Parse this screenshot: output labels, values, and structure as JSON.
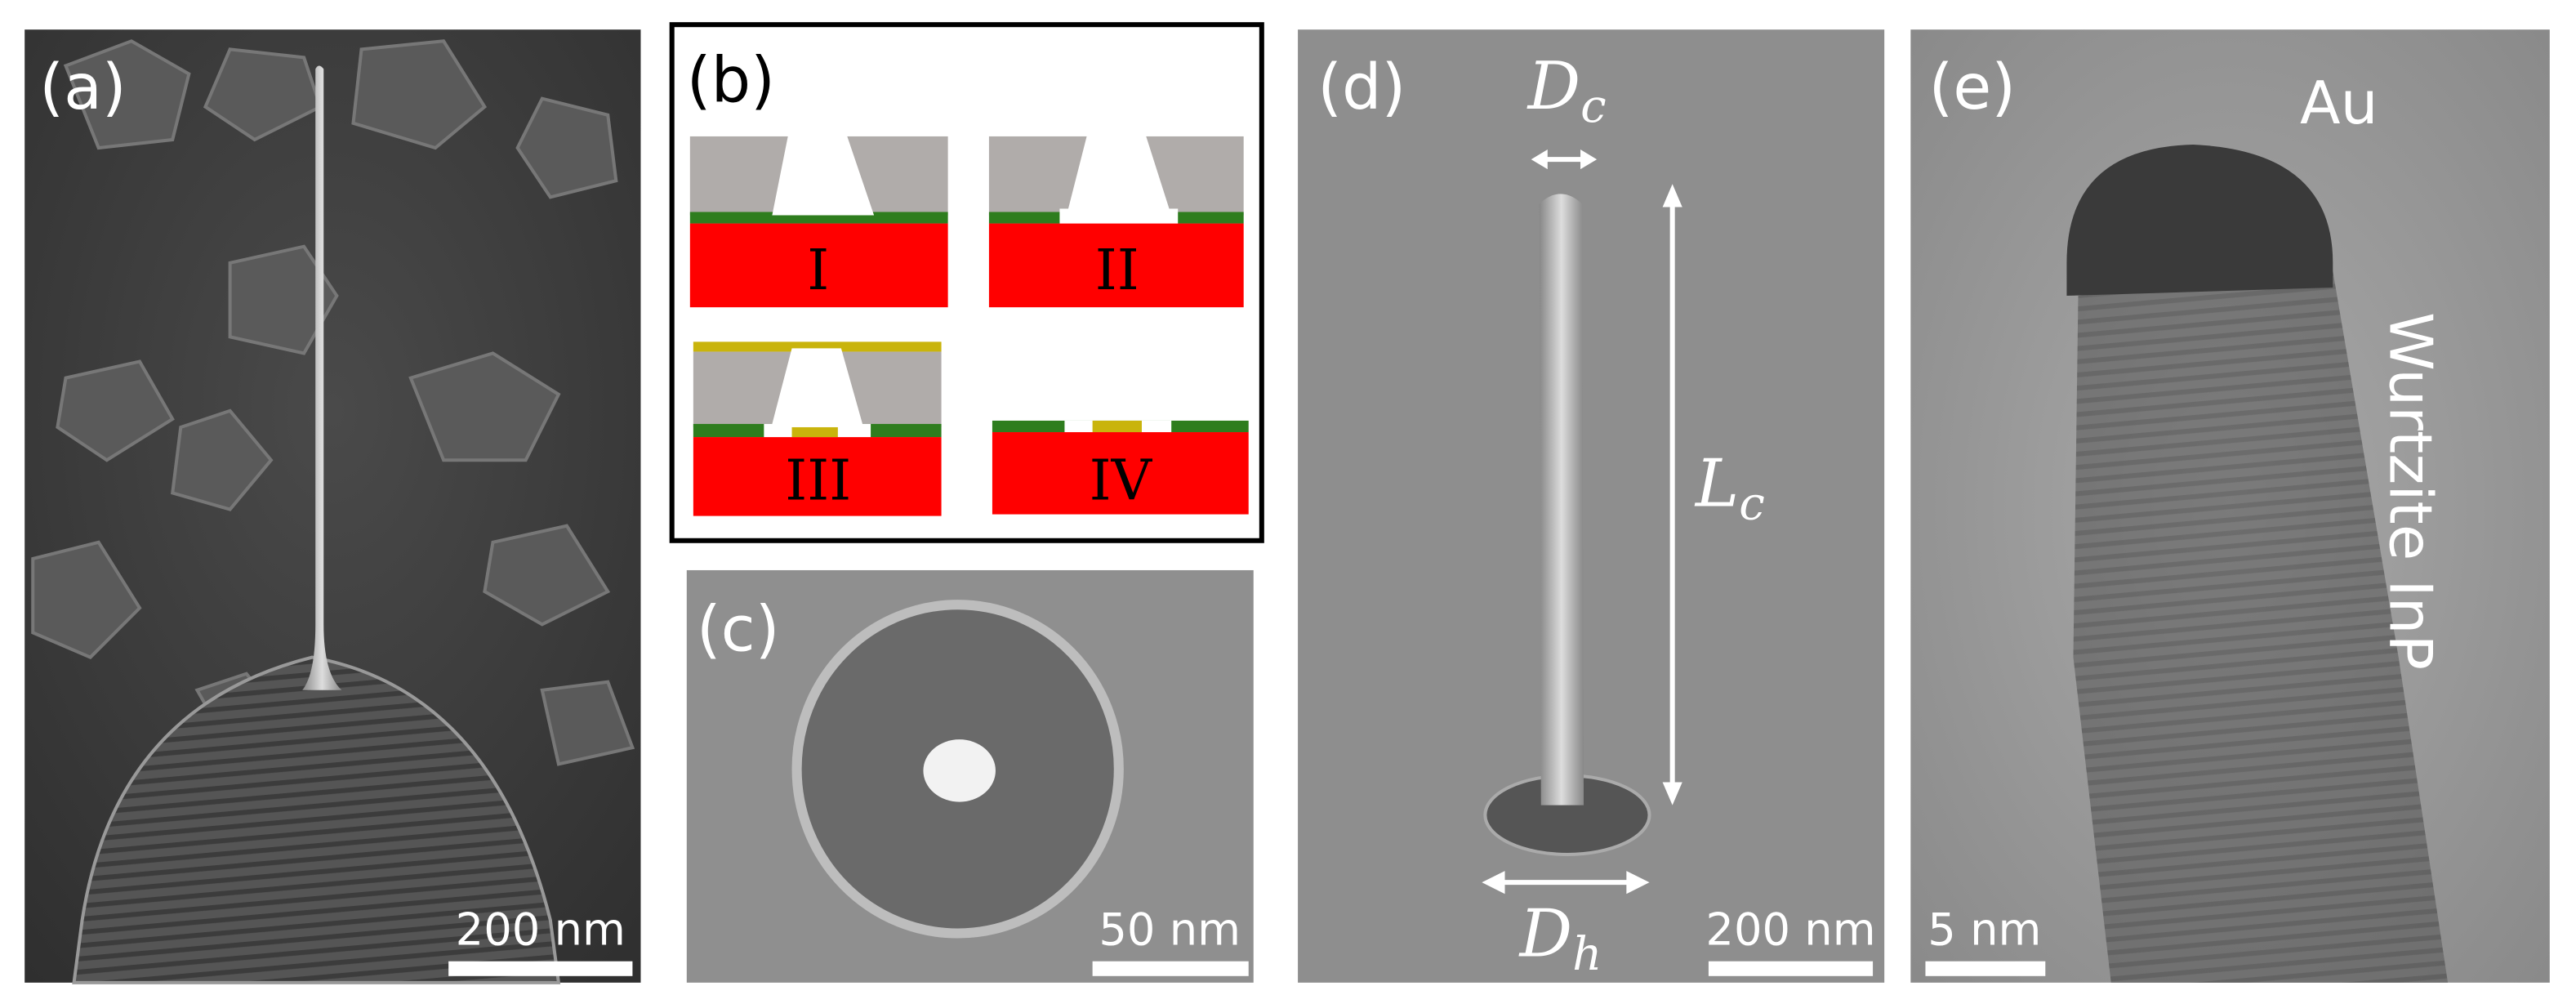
{
  "panels": [
    {
      "label": "(a)",
      "scale_bar": "200 nm"
    },
    {
      "label": "(b)",
      "steps": [
        "I",
        "II",
        "III",
        "IV"
      ]
    },
    {
      "label": "(c)",
      "scale_bar": "50 nm"
    },
    {
      "label": "(d)",
      "scale_bar": "200 nm",
      "annotations": [
        {
          "symbol": "D",
          "subscript": "c"
        },
        {
          "symbol": "L",
          "subscript": "c"
        },
        {
          "symbol": "D",
          "subscript": "h"
        }
      ]
    },
    {
      "label": "(e)",
      "scale_bar": "5 nm",
      "annotations": [
        "Au",
        "Wurtzite InP"
      ]
    }
  ]
}
